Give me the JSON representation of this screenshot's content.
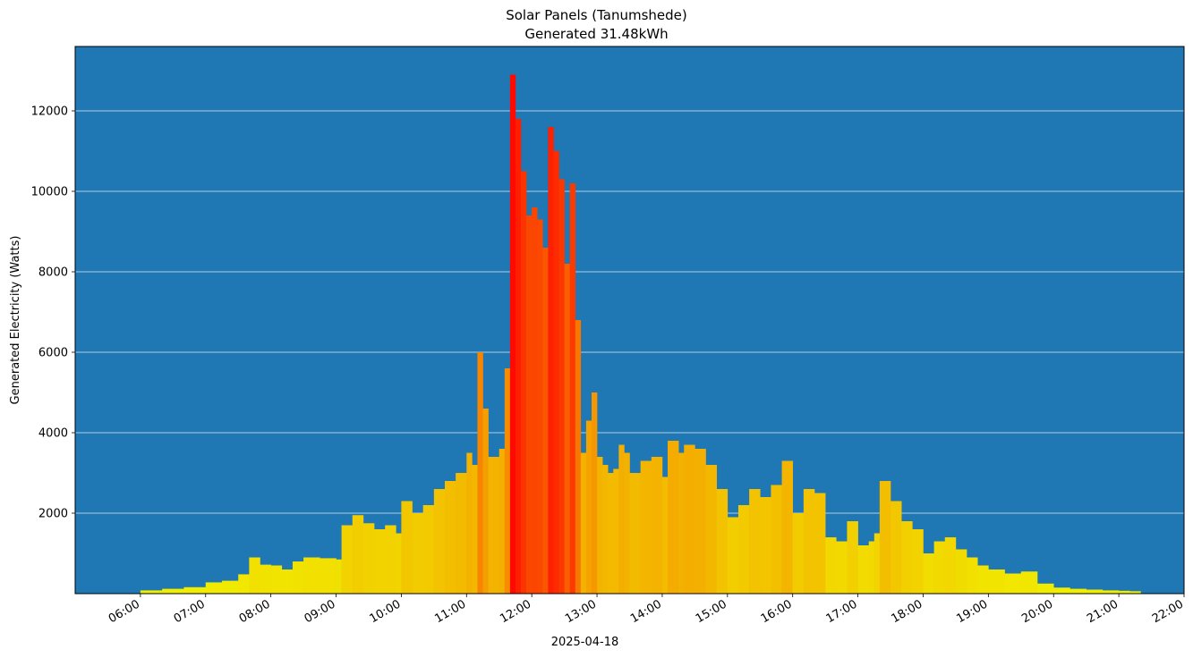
{
  "chart_data": {
    "type": "bar",
    "title": "Solar Panels (Tanumshede)",
    "subtitle": "Generated 31.48kWh",
    "xlabel": "2025-04-18",
    "ylabel": "Generated Electricity (Watts)",
    "ylim": [
      0,
      13600
    ],
    "xlim_hours": [
      5.0,
      22.0
    ],
    "yticks": [
      2000,
      4000,
      6000,
      8000,
      10000,
      12000
    ],
    "ytick_labels": [
      "2000",
      "4000",
      "6000",
      "8000",
      "10000",
      "12000"
    ],
    "xticks": [
      6,
      7,
      8,
      9,
      10,
      11,
      12,
      13,
      14,
      15,
      16,
      17,
      18,
      19,
      20,
      21,
      22
    ],
    "xtick_labels": [
      "06:00",
      "07:00",
      "08:00",
      "09:00",
      "10:00",
      "11:00",
      "12:00",
      "13:00",
      "14:00",
      "15:00",
      "16:00",
      "17:00",
      "18:00",
      "19:00",
      "20:00",
      "21:00",
      "22:00"
    ],
    "grid": "horizontal",
    "background_color": "#1f77b4",
    "colormap": "yellow-to-red by value",
    "x": [
      "06:00",
      "06:20",
      "06:40",
      "07:00",
      "07:15",
      "07:30",
      "07:40",
      "07:50",
      "08:00",
      "08:10",
      "08:20",
      "08:30",
      "08:45",
      "09:00",
      "09:05",
      "09:15",
      "09:25",
      "09:35",
      "09:45",
      "09:55",
      "10:00",
      "10:10",
      "10:20",
      "10:30",
      "10:40",
      "10:50",
      "11:00",
      "11:05",
      "11:10",
      "11:15",
      "11:20",
      "11:30",
      "11:35",
      "11:40",
      "11:45",
      "11:50",
      "11:55",
      "12:00",
      "12:05",
      "12:10",
      "12:15",
      "12:20",
      "12:25",
      "12:30",
      "12:35",
      "12:40",
      "12:45",
      "12:50",
      "12:55",
      "13:00",
      "13:05",
      "13:10",
      "13:15",
      "13:20",
      "13:25",
      "13:30",
      "13:40",
      "13:50",
      "14:00",
      "14:05",
      "14:15",
      "14:20",
      "14:30",
      "14:40",
      "14:50",
      "15:00",
      "15:10",
      "15:20",
      "15:30",
      "15:40",
      "15:50",
      "16:00",
      "16:10",
      "16:20",
      "16:30",
      "16:40",
      "16:50",
      "17:00",
      "17:10",
      "17:15",
      "17:20",
      "17:30",
      "17:40",
      "17:50",
      "18:00",
      "18:10",
      "18:20",
      "18:30",
      "18:40",
      "18:50",
      "19:00",
      "19:15",
      "19:30",
      "19:45",
      "20:00",
      "20:15",
      "20:30",
      "20:45",
      "21:00",
      "21:10"
    ],
    "values": [
      80,
      120,
      160,
      280,
      320,
      480,
      900,
      720,
      700,
      600,
      800,
      900,
      880,
      850,
      1700,
      1950,
      1750,
      1600,
      1700,
      1500,
      2300,
      2000,
      2200,
      2600,
      2800,
      3000,
      3500,
      3200,
      6000,
      4600,
      3400,
      3600,
      5600,
      12900,
      11800,
      10500,
      9400,
      9600,
      9300,
      8600,
      11600,
      11000,
      10300,
      8200,
      10200,
      6800,
      3500,
      4300,
      5000,
      3400,
      3200,
      3000,
      3100,
      3700,
      3500,
      3000,
      3300,
      3400,
      2900,
      3800,
      3500,
      3700,
      3600,
      3200,
      2600,
      1900,
      2200,
      2600,
      2400,
      2700,
      3300,
      2000,
      2600,
      2500,
      1400,
      1300,
      1800,
      1200,
      1300,
      1500,
      2800,
      2300,
      1800,
      1600,
      1000,
      1300,
      1400,
      1100,
      900,
      700,
      600,
      500,
      550,
      250,
      150,
      120,
      100,
      80,
      70,
      60
    ]
  }
}
